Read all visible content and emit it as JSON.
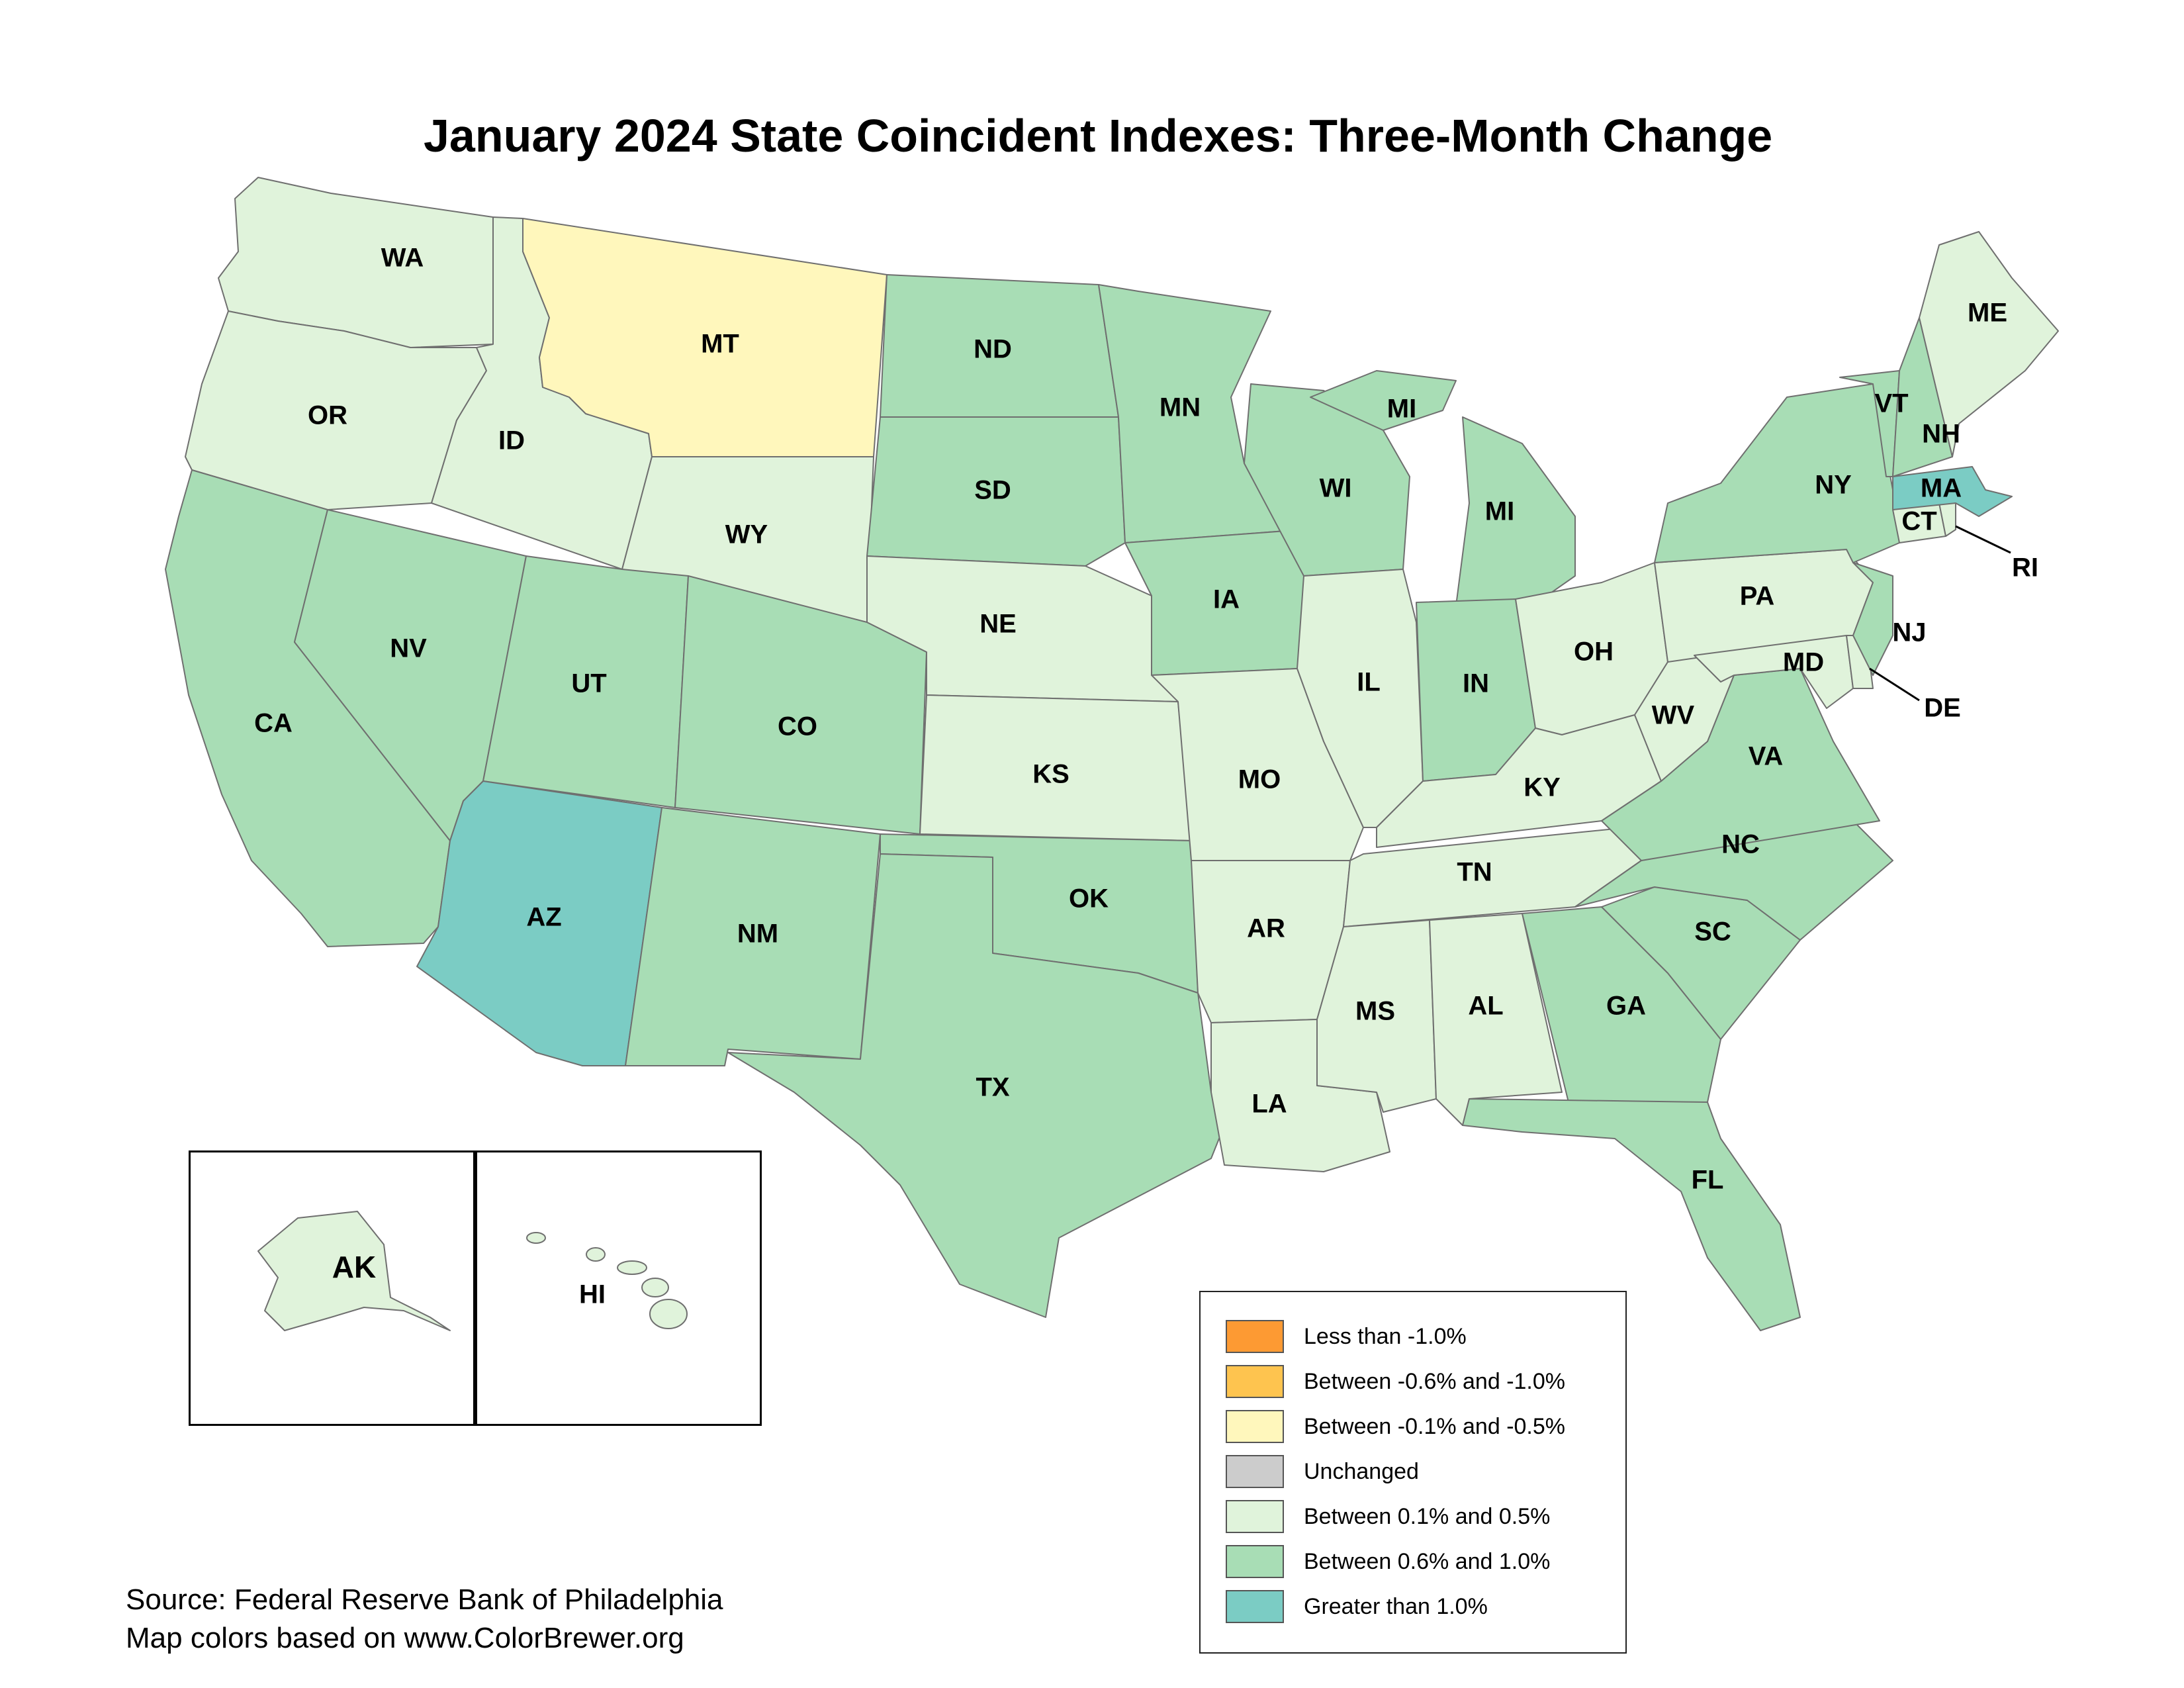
{
  "title": "January 2024 State Coincident Indexes: Three-Month Change",
  "legend": [
    {
      "label": "Less than -1.0%",
      "color": "#fd9a33"
    },
    {
      "label": "Between -0.6% and -1.0%",
      "color": "#fec44f"
    },
    {
      "label": "Between -0.1% and -0.5%",
      "color": "#fff7bc"
    },
    {
      "label": "Unchanged",
      "color": "#cccccc"
    },
    {
      "label": "Between 0.1% and 0.5%",
      "color": "#e0f3db"
    },
    {
      "label": "Between 0.6% and 1.0%",
      "color": "#a8ddb5"
    },
    {
      "label": "Greater than 1.0%",
      "color": "#7bccc4"
    }
  ],
  "states": {
    "WA": "Between 0.1% and 0.5%",
    "OR": "Between 0.1% and 0.5%",
    "CA": "Between 0.6% and 1.0%",
    "ID": "Between 0.1% and 0.5%",
    "NV": "Between 0.6% and 1.0%",
    "MT": "Between -0.1% and -0.5%",
    "WY": "Between 0.1% and 0.5%",
    "UT": "Between 0.6% and 1.0%",
    "AZ": "Greater than 1.0%",
    "CO": "Between 0.6% and 1.0%",
    "NM": "Between 0.6% and 1.0%",
    "ND": "Between 0.6% and 1.0%",
    "SD": "Between 0.6% and 1.0%",
    "NE": "Between 0.1% and 0.5%",
    "KS": "Between 0.1% and 0.5%",
    "OK": "Between 0.6% and 1.0%",
    "TX": "Between 0.6% and 1.0%",
    "MN": "Between 0.6% and 1.0%",
    "IA": "Between 0.6% and 1.0%",
    "MO": "Between 0.1% and 0.5%",
    "AR": "Between 0.1% and 0.5%",
    "LA": "Between 0.1% and 0.5%",
    "WI": "Between 0.6% and 1.0%",
    "IL": "Between 0.1% and 0.5%",
    "MI": "Between 0.6% and 1.0%",
    "IN": "Between 0.6% and 1.0%",
    "OH": "Between 0.1% and 0.5%",
    "KY": "Between 0.1% and 0.5%",
    "TN": "Between 0.1% and 0.5%",
    "MS": "Between 0.1% and 0.5%",
    "AL": "Between 0.1% and 0.5%",
    "GA": "Between 0.6% and 1.0%",
    "FL": "Between 0.6% and 1.0%",
    "SC": "Between 0.6% and 1.0%",
    "NC": "Between 0.6% and 1.0%",
    "VA": "Between 0.6% and 1.0%",
    "WV": "Between 0.1% and 0.5%",
    "MD": "Between 0.1% and 0.5%",
    "DE": "Between 0.1% and 0.5%",
    "PA": "Between 0.1% and 0.5%",
    "NJ": "Between 0.6% and 1.0%",
    "NY": "Between 0.6% and 1.0%",
    "CT": "Between 0.1% and 0.5%",
    "RI": "Between 0.1% and 0.5%",
    "MA": "Greater than 1.0%",
    "VT": "Between 0.6% and 1.0%",
    "NH": "Between 0.6% and 1.0%",
    "ME": "Between 0.1% and 0.5%",
    "AK": "Between 0.1% and 0.5%",
    "HI": "Between 0.1% and 0.5%"
  },
  "source_line1": "Source: Federal Reserve Bank of Philadelphia",
  "source_line2": "Map colors based on www.ColorBrewer.org"
}
